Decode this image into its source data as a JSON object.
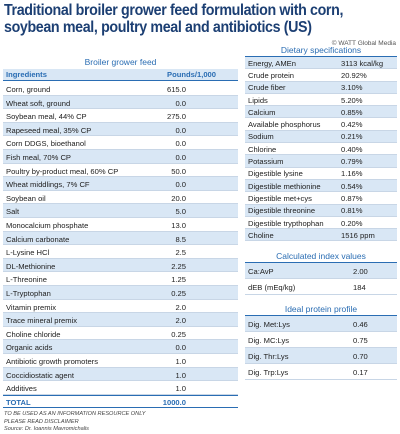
{
  "header": {
    "title": "Traditional broiler grower feed formulation with corn, soybean meal, poultry meal and antibiotics (US)",
    "copyright": "© WATT Global Media"
  },
  "feed": {
    "title": "Broiler grower feed",
    "columns": [
      "Ingredients",
      "Pounds/1,000"
    ],
    "rows": [
      [
        "Corn, ground",
        "615.0"
      ],
      [
        "Wheat soft, ground",
        "0.0"
      ],
      [
        "Soybean meal, 44% CP",
        "275.0"
      ],
      [
        "Rapeseed meal, 35% CP",
        "0.0"
      ],
      [
        "Corn DDGS, bioethanol",
        "0.0"
      ],
      [
        "Fish meal, 70% CP",
        "0.0"
      ],
      [
        "Poultry by-product meal, 60% CP",
        "50.0"
      ],
      [
        "Wheat middlings, 7% CF",
        "0.0"
      ],
      [
        "Soybean oil",
        "20.0"
      ],
      [
        "Salt",
        "5.0"
      ],
      [
        "Monocalcium phosphate",
        "13.0"
      ],
      [
        "Calcium carbonate",
        "8.5"
      ],
      [
        "L-Lysine HCl",
        "2.5"
      ],
      [
        "DL-Methionine",
        "2.25"
      ],
      [
        "L-Threonine",
        "1.25"
      ],
      [
        "L-Tryptophan",
        "0.25"
      ],
      [
        "Vitamin premix",
        "2.0"
      ],
      [
        "Trace mineral premix",
        "2.0"
      ],
      [
        "Choline chloride",
        "0.25"
      ],
      [
        "Organic acids",
        "0.0"
      ],
      [
        "Antibiotic growth promoters",
        "1.0"
      ],
      [
        "Coccidiostatic agent",
        "1.0"
      ],
      [
        "Additives",
        "1.0"
      ]
    ],
    "total": [
      "TOTAL",
      "1000.0"
    ]
  },
  "specs": {
    "title": "Dietary specifications",
    "rows": [
      [
        "Energy, AMEn",
        "3113 kcal/kg"
      ],
      [
        "Crude protein",
        "20.92%"
      ],
      [
        "Crude fiber",
        "3.10%"
      ],
      [
        "Lipids",
        "5.20%"
      ],
      [
        "Calcium",
        "0.85%"
      ],
      [
        "Available phosphorus",
        "0.42%"
      ],
      [
        "Sodium",
        "0.21%"
      ],
      [
        "Chlorine",
        "0.40%"
      ],
      [
        "Potassium",
        "0.79%"
      ],
      [
        "Digestible lysine",
        "1.16%"
      ],
      [
        "Digestible methionine",
        "0.54%"
      ],
      [
        "Digestible met+cys",
        "0.87%"
      ],
      [
        "Digestible threonine",
        "0.81%"
      ],
      [
        "Digestible trypthophan",
        "0.20%"
      ],
      [
        "Choline",
        "1516 ppm"
      ]
    ]
  },
  "index": {
    "title": "Calculated index values",
    "rows": [
      [
        "Ca:AvP",
        "2.00"
      ],
      [
        "dEB (mEq/kg)",
        "184"
      ]
    ]
  },
  "protein": {
    "title": "Ideal protein profile",
    "rows": [
      [
        "Dig. Met:Lys",
        "0.46"
      ],
      [
        "Dig. MC:Lys",
        "0.75"
      ],
      [
        "Dig. Thr:Lys",
        "0.70"
      ],
      [
        "Dig. Trp:Lys",
        "0.17"
      ]
    ]
  },
  "footer": [
    "TO BE USED AS AN INFORMATION RESOURCE ONLY",
    "PLEASE READ DISCLAIMER",
    "Source: Dr. Ioannis Mavromichalis"
  ]
}
